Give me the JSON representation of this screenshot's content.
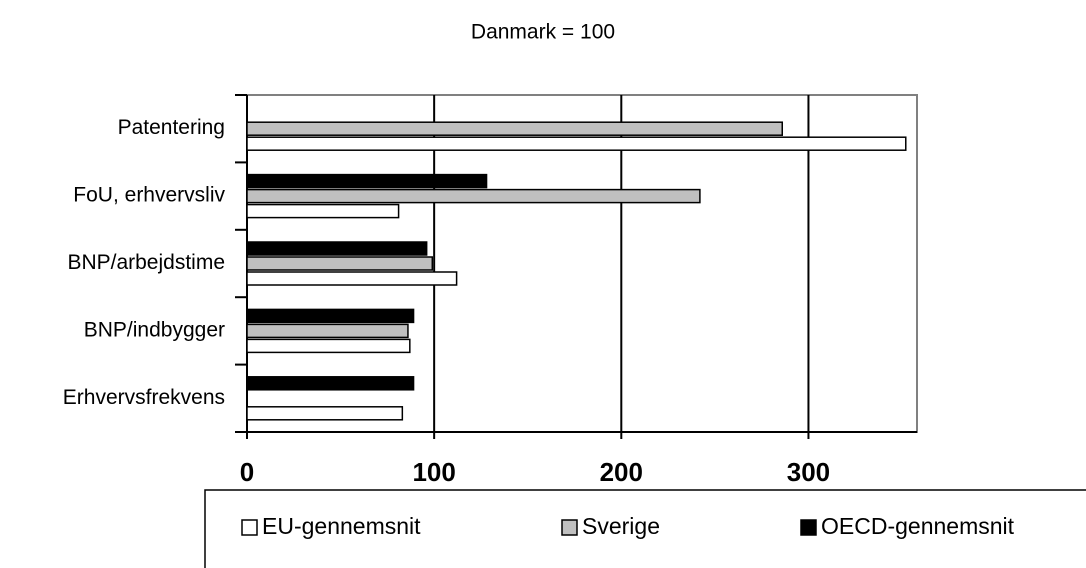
{
  "chart_data": {
    "type": "hbar",
    "title": "Danmark = 100",
    "categories": [
      "Patentering",
      "FoU, erhvervsliv",
      "BNP/arbejdstime",
      "BNP/indbygger",
      "Erhvervsfrekvens"
    ],
    "series": [
      {
        "name": "EU-gennemsnit",
        "color": "#ffffff",
        "values": [
          352,
          81,
          112,
          87,
          83
        ]
      },
      {
        "name": "Sverige",
        "color": "#c0c0c0",
        "values": [
          286,
          242,
          99,
          86,
          null
        ]
      },
      {
        "name": "OECD-gennemsnit",
        "color": "#000000",
        "values": [
          null,
          128,
          96,
          89,
          89
        ]
      }
    ],
    "xlim": [
      0,
      358
    ],
    "xticks": [
      0,
      100,
      200,
      300
    ],
    "grid": true,
    "legend": "bottom"
  }
}
